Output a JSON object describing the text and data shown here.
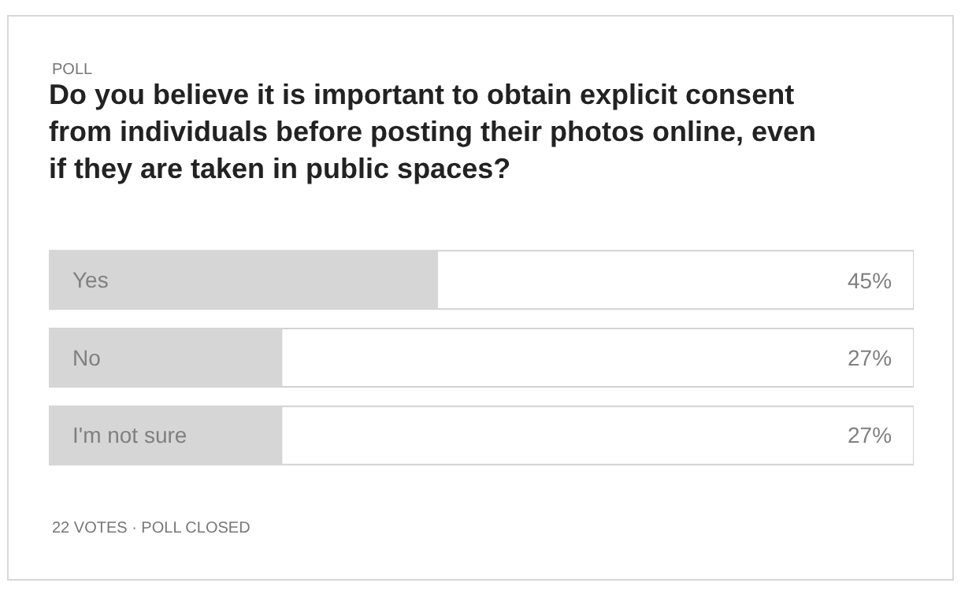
{
  "chart_data": {
    "type": "bar",
    "orientation": "horizontal",
    "title": "Do you believe it is important to obtain explicit consent from individuals before posting their photos online, even if they are taken in public spaces?",
    "annotations": [
      "POLL",
      "22 VOTES · POLL CLOSED"
    ],
    "categories": [
      "Yes",
      "No",
      "I'm not sure"
    ],
    "values": [
      45,
      27,
      27
    ],
    "value_labels": [
      "45%",
      "27%",
      "27%"
    ],
    "color": "#d6d6d6",
    "xlim": [
      0,
      100
    ],
    "tick_labels": "y"
  }
}
